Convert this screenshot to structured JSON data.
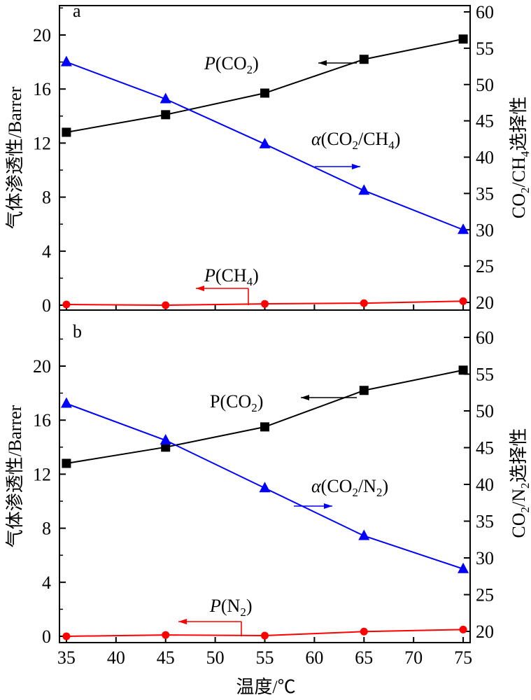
{
  "colors": {
    "co2": "#000000",
    "selectivity": "#0000ff",
    "other_gas": "#ff0000"
  },
  "x_axis_title": "温度/℃",
  "chart_data": [
    {
      "type": "line",
      "panel_label": "a",
      "x": [
        35,
        45,
        55,
        65,
        75
      ],
      "xticks": [
        35,
        40,
        45,
        50,
        55,
        60,
        65,
        70,
        75
      ],
      "xlim": [
        34.3,
        75.7
      ],
      "ylabel_left": "气体渗透性/Barrer",
      "ylim_left": [
        0,
        22
      ],
      "yticks_left": [
        0,
        4,
        8,
        12,
        16,
        20
      ],
      "ylabel_right": "CO2/CH4选择性",
      "ylim_right": [
        19,
        60
      ],
      "yticks_right": [
        20,
        25,
        30,
        35,
        40,
        45,
        50,
        55,
        60
      ],
      "series": [
        {
          "name": "P(CO2)",
          "axis": "left",
          "marker": "square",
          "color_key": "co2",
          "values": [
            12.8,
            14.1,
            15.7,
            18.2,
            19.7
          ]
        },
        {
          "name": "α(CO2/CH4)",
          "axis": "right",
          "marker": "triangle",
          "color_key": "selectivity",
          "values": [
            53.1,
            48.0,
            41.8,
            35.4,
            30.0
          ]
        },
        {
          "name": "P(CH4)",
          "axis": "left",
          "marker": "circle",
          "color_key": "other_gas",
          "values": [
            0.05,
            0.0,
            0.1,
            0.15,
            0.3
          ]
        }
      ]
    },
    {
      "type": "line",
      "panel_label": "b",
      "x": [
        35,
        45,
        55,
        65,
        75
      ],
      "xticks": [
        35,
        40,
        45,
        50,
        55,
        60,
        65,
        70,
        75
      ],
      "xlim": [
        34.3,
        75.7
      ],
      "ylabel_left": "气体渗透性/Barrer",
      "ylim_left": [
        0,
        22
      ],
      "yticks_left": [
        0,
        4,
        8,
        12,
        16,
        20
      ],
      "ylabel_right": "CO2/N2选择性",
      "ylim_right": [
        19,
        60
      ],
      "yticks_right": [
        20,
        25,
        30,
        35,
        40,
        45,
        50,
        55,
        60
      ],
      "series": [
        {
          "name": "P(CO2)",
          "axis": "left",
          "marker": "square",
          "color_key": "co2",
          "values": [
            12.8,
            14.0,
            15.5,
            18.2,
            19.7
          ]
        },
        {
          "name": "α(CO2/N2)",
          "axis": "right",
          "marker": "triangle",
          "color_key": "selectivity",
          "values": [
            51.0,
            46.0,
            39.5,
            33.0,
            28.5
          ]
        },
        {
          "name": "P(N2)",
          "axis": "left",
          "marker": "circle",
          "color_key": "other_gas",
          "values": [
            0.0,
            0.1,
            0.05,
            0.35,
            0.5
          ]
        }
      ]
    }
  ]
}
